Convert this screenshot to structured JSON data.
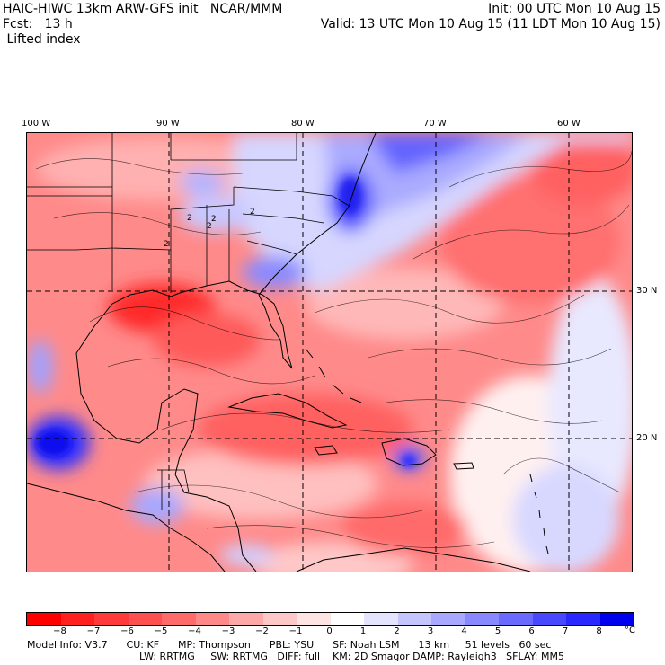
{
  "header": {
    "line1_left": "HAIC-HIWC 13km ARW-GFS init   NCAR/MMM",
    "line1_right": "Init: 00 UTC Mon 10 Aug 15",
    "line2_left": "Fcst:   13 h",
    "line2_right": "Valid: 13 UTC Mon 10 Aug 15 (11 LDT Mon 10 Aug 15)",
    "line3_left": " Lifted index"
  },
  "map": {
    "lon_labels": [
      "100 W",
      "90 W",
      "80 W",
      "70 W",
      "60 W"
    ],
    "lat_labels": [
      "30 N",
      "20 N"
    ],
    "contour_labels": [
      "2",
      "2",
      "2",
      "2",
      "2"
    ]
  },
  "colorbar": {
    "unit": "°C",
    "tick_labels": [
      "−8",
      "−7",
      "−6",
      "−5",
      "−4",
      "−3",
      "−2",
      "−1",
      "0",
      "1",
      "2",
      "3",
      "4",
      "5",
      "6",
      "7",
      "8"
    ],
    "colors": [
      "#ff0000",
      "#ff2020",
      "#ff3a3a",
      "#ff5050",
      "#ff6a6a",
      "#ff8888",
      "#ffa8a8",
      "#ffc8c8",
      "#ffe4e4",
      "#ffffff",
      "#e4e4ff",
      "#c4c4ff",
      "#a8a8ff",
      "#8888ff",
      "#6a6aff",
      "#4848ff",
      "#2828ff",
      "#0000ee"
    ]
  },
  "footer": {
    "line1": "Model Info: V3.7      CU: KF      MP: Thompson      PBL: YSU      SF: Noah LSM      13 km     51 levels   60 sec",
    "line2": "LW: RRTMG     SW: RRTMG   DIFF: full    KM: 2D Smagor DAMP: Rayleigh3   SFLAY: MM5"
  }
}
